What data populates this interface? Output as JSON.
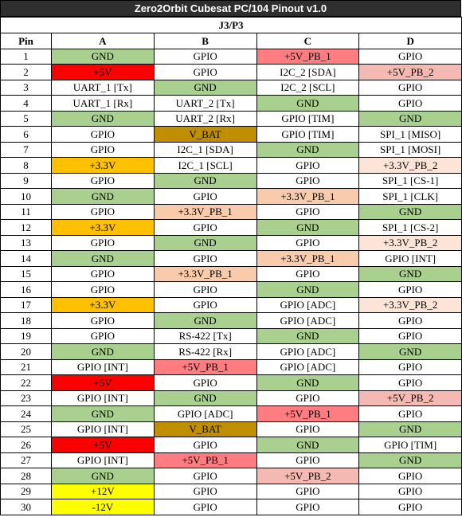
{
  "title": "Zero2Orbit Cubesat PC/104 Pinout v1.0",
  "subtitle": "J3/P3",
  "headers": [
    "Pin",
    "A",
    "B",
    "C",
    "D"
  ],
  "colors": {
    "gnd": "#a9d08e",
    "plus5v": "#ff0000",
    "plus3v3": "#ffc000",
    "plus12v": "#ffff00",
    "vbat": "#bf8f00",
    "plus5v_pb_1": "#ff7c80",
    "plus5v_pb_2": "#f4b9b3",
    "plus3v3_pb_1": "#f8cbad",
    "plus3v3_pb_2": "#fce4d6"
  },
  "rows": [
    {
      "pin": "1",
      "cells": [
        {
          "text": "GND",
          "color": "green"
        },
        {
          "text": "GPIO",
          "color": "white"
        },
        {
          "text": "+5V_PB_1",
          "color": "pinkdk"
        },
        {
          "text": "GPIO",
          "color": "white"
        }
      ]
    },
    {
      "pin": "2",
      "cells": [
        {
          "text": "+5V",
          "color": "red"
        },
        {
          "text": "GPIO",
          "color": "white"
        },
        {
          "text": "I2C_2 [SDA]",
          "color": "white"
        },
        {
          "text": "+5V_PB_2",
          "color": "pinklt"
        }
      ]
    },
    {
      "pin": "3",
      "cells": [
        {
          "text": "UART_1 [Tx]",
          "color": "white"
        },
        {
          "text": "GND",
          "color": "green"
        },
        {
          "text": "I2C_2 [SCL]",
          "color": "white"
        },
        {
          "text": "GPIO",
          "color": "white"
        }
      ]
    },
    {
      "pin": "4",
      "cells": [
        {
          "text": "UART_1 [Rx]",
          "color": "white"
        },
        {
          "text": "UART_2 [Tx]",
          "color": "white"
        },
        {
          "text": "GND",
          "color": "green"
        },
        {
          "text": "GPIO",
          "color": "white"
        }
      ]
    },
    {
      "pin": "5",
      "cells": [
        {
          "text": "GND",
          "color": "green"
        },
        {
          "text": "UART_2 [Rx]",
          "color": "white"
        },
        {
          "text": "GPIO [TIM]",
          "color": "white"
        },
        {
          "text": "GND",
          "color": "green"
        }
      ]
    },
    {
      "pin": "6",
      "cells": [
        {
          "text": "GPIO",
          "color": "white"
        },
        {
          "text": "V_BAT",
          "color": "brown"
        },
        {
          "text": "GPIO [TIM]",
          "color": "white"
        },
        {
          "text": "SPI_1 [MISO]",
          "color": "white"
        }
      ]
    },
    {
      "pin": "7",
      "cells": [
        {
          "text": "GPIO",
          "color": "white"
        },
        {
          "text": "I2C_1 [SDA]",
          "color": "white"
        },
        {
          "text": "GND",
          "color": "green"
        },
        {
          "text": "SPI_1 [MOSI]",
          "color": "white"
        }
      ]
    },
    {
      "pin": "8",
      "cells": [
        {
          "text": "+3.3V",
          "color": "orange"
        },
        {
          "text": "I2C_1 [SCL]",
          "color": "white"
        },
        {
          "text": "GPIO",
          "color": "white"
        },
        {
          "text": "+3.3V_PB_2",
          "color": "peachlt"
        }
      ]
    },
    {
      "pin": "9",
      "cells": [
        {
          "text": "GPIO",
          "color": "white"
        },
        {
          "text": "GND",
          "color": "green"
        },
        {
          "text": "GPIO",
          "color": "white"
        },
        {
          "text": "SPI_1 [CS-1]",
          "color": "white"
        }
      ]
    },
    {
      "pin": "10",
      "cells": [
        {
          "text": "GND",
          "color": "green"
        },
        {
          "text": "GPIO",
          "color": "white"
        },
        {
          "text": "+3.3V_PB_1",
          "color": "peach"
        },
        {
          "text": "SPI_1 [CLK]",
          "color": "white"
        }
      ]
    },
    {
      "pin": "11",
      "cells": [
        {
          "text": "GPIO",
          "color": "white"
        },
        {
          "text": "+3.3V_PB_1",
          "color": "peach"
        },
        {
          "text": "GPIO",
          "color": "white"
        },
        {
          "text": "GND",
          "color": "green"
        }
      ]
    },
    {
      "pin": "12",
      "cells": [
        {
          "text": "+3.3V",
          "color": "orange"
        },
        {
          "text": "GPIO",
          "color": "white"
        },
        {
          "text": "GND",
          "color": "green"
        },
        {
          "text": "SPI_1 [CS-2]",
          "color": "white"
        }
      ]
    },
    {
      "pin": "13",
      "cells": [
        {
          "text": "GPIO",
          "color": "white"
        },
        {
          "text": "GND",
          "color": "green"
        },
        {
          "text": "GPIO",
          "color": "white"
        },
        {
          "text": "+3.3V_PB_2",
          "color": "peachlt"
        }
      ]
    },
    {
      "pin": "14",
      "cells": [
        {
          "text": "GND",
          "color": "green"
        },
        {
          "text": "GPIO",
          "color": "white"
        },
        {
          "text": "+3.3V_PB_1",
          "color": "peach"
        },
        {
          "text": "GPIO [INT]",
          "color": "white"
        }
      ]
    },
    {
      "pin": "15",
      "cells": [
        {
          "text": "GPIO",
          "color": "white"
        },
        {
          "text": "+3.3V_PB_1",
          "color": "peach"
        },
        {
          "text": "GPIO",
          "color": "white"
        },
        {
          "text": "GND",
          "color": "green"
        }
      ]
    },
    {
      "pin": "16",
      "cells": [
        {
          "text": "GPIO",
          "color": "white"
        },
        {
          "text": "GPIO",
          "color": "white"
        },
        {
          "text": "GND",
          "color": "green"
        },
        {
          "text": "GPIO",
          "color": "white"
        }
      ]
    },
    {
      "pin": "17",
      "cells": [
        {
          "text": "+3.3V",
          "color": "orange"
        },
        {
          "text": "GPIO",
          "color": "white"
        },
        {
          "text": "GPIO [ADC]",
          "color": "white"
        },
        {
          "text": "+3.3V_PB_2",
          "color": "peachlt"
        }
      ]
    },
    {
      "pin": "18",
      "cells": [
        {
          "text": "GPIO",
          "color": "white"
        },
        {
          "text": "GND",
          "color": "green"
        },
        {
          "text": "GPIO [ADC]",
          "color": "white"
        },
        {
          "text": "GPIO",
          "color": "white"
        }
      ]
    },
    {
      "pin": "19",
      "cells": [
        {
          "text": "GPIO",
          "color": "white"
        },
        {
          "text": "RS-422 [Tx]",
          "color": "white"
        },
        {
          "text": "GND",
          "color": "green"
        },
        {
          "text": "GPIO",
          "color": "white"
        }
      ]
    },
    {
      "pin": "20",
      "cells": [
        {
          "text": "GND",
          "color": "green"
        },
        {
          "text": "RS-422 [Rx]",
          "color": "white"
        },
        {
          "text": "GPIO [ADC]",
          "color": "white"
        },
        {
          "text": "GND",
          "color": "green"
        }
      ]
    },
    {
      "pin": "21",
      "cells": [
        {
          "text": "GPIO [INT]",
          "color": "white"
        },
        {
          "text": "+5V_PB_1",
          "color": "pinkdk"
        },
        {
          "text": "GPIO [ADC]",
          "color": "white"
        },
        {
          "text": "GPIO",
          "color": "white"
        }
      ]
    },
    {
      "pin": "22",
      "cells": [
        {
          "text": "+5V",
          "color": "red"
        },
        {
          "text": "GPIO",
          "color": "white"
        },
        {
          "text": "GND",
          "color": "green"
        },
        {
          "text": "GPIO",
          "color": "white"
        }
      ]
    },
    {
      "pin": "23",
      "cells": [
        {
          "text": "GPIO [INT]",
          "color": "white"
        },
        {
          "text": "GND",
          "color": "green"
        },
        {
          "text": "GPIO",
          "color": "white"
        },
        {
          "text": "+5V_PB_2",
          "color": "pinklt"
        }
      ]
    },
    {
      "pin": "24",
      "cells": [
        {
          "text": "GND",
          "color": "green"
        },
        {
          "text": "GPIO [ADC]",
          "color": "white"
        },
        {
          "text": "+5V_PB_1",
          "color": "pinkdk"
        },
        {
          "text": "GPIO",
          "color": "white"
        }
      ]
    },
    {
      "pin": "25",
      "cells": [
        {
          "text": "GPIO [INT]",
          "color": "white"
        },
        {
          "text": "V_BAT",
          "color": "brown"
        },
        {
          "text": "GPIO",
          "color": "white"
        },
        {
          "text": "GND",
          "color": "green"
        }
      ]
    },
    {
      "pin": "26",
      "cells": [
        {
          "text": "+5V",
          "color": "red"
        },
        {
          "text": "GPIO",
          "color": "white"
        },
        {
          "text": "GND",
          "color": "green"
        },
        {
          "text": "GPIO [TIM]",
          "color": "white"
        }
      ]
    },
    {
      "pin": "27",
      "cells": [
        {
          "text": "GPIO [INT]",
          "color": "white"
        },
        {
          "text": "+5V_PB_1",
          "color": "pinkdk"
        },
        {
          "text": "GPIO",
          "color": "white"
        },
        {
          "text": "GND",
          "color": "green"
        }
      ]
    },
    {
      "pin": "28",
      "cells": [
        {
          "text": "GND",
          "color": "green"
        },
        {
          "text": "GPIO",
          "color": "white"
        },
        {
          "text": "+5V_PB_2",
          "color": "pinklt"
        },
        {
          "text": "GPIO",
          "color": "white"
        }
      ]
    },
    {
      "pin": "29",
      "cells": [
        {
          "text": "+12V",
          "color": "yellow"
        },
        {
          "text": "GPIO",
          "color": "white"
        },
        {
          "text": "GPIO",
          "color": "white"
        },
        {
          "text": "GPIO",
          "color": "white"
        }
      ]
    },
    {
      "pin": "30",
      "cells": [
        {
          "text": "-12V",
          "color": "yellow"
        },
        {
          "text": "GPIO",
          "color": "white"
        },
        {
          "text": "GPIO",
          "color": "white"
        },
        {
          "text": "GPIO",
          "color": "white"
        }
      ]
    }
  ]
}
